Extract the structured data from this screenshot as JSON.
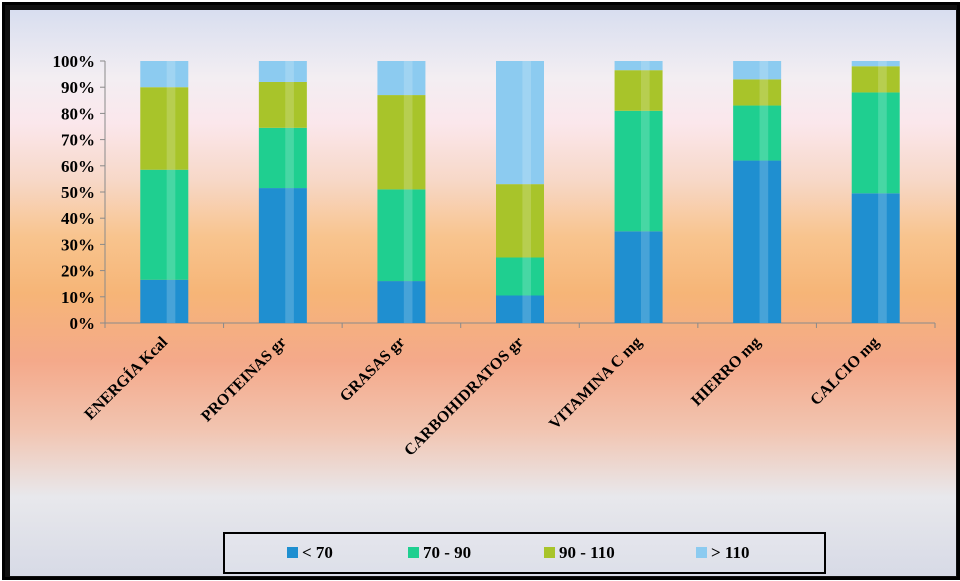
{
  "chart_data": {
    "type": "bar",
    "stacked": true,
    "percent_stacked": true,
    "title": "",
    "xlabel": "",
    "ylabel": "",
    "ylim": [
      0,
      100
    ],
    "y_ticks": [
      "0%",
      "10%",
      "20%",
      "30%",
      "40%",
      "50%",
      "60%",
      "70%",
      "80%",
      "90%",
      "100%"
    ],
    "grid": false,
    "legend_position": "bottom",
    "categories": [
      "ENERGÍA Kcal",
      "PROTEINAS gr",
      "GRASAS gr",
      "CARBOHIDRATOS gr",
      "VITAMINA C mg",
      "HIERRO mg",
      "CALCIO mg"
    ],
    "series": [
      {
        "name": "< 70",
        "color": "#1f8fd0",
        "values": [
          16.5,
          51.5,
          16.0,
          10.5,
          35.0,
          62.0,
          49.5
        ]
      },
      {
        "name": "70 - 90",
        "color": "#1fcf90",
        "values": [
          42.0,
          23.0,
          35.0,
          14.5,
          46.0,
          21.0,
          38.5
        ]
      },
      {
        "name": "90 - 110",
        "color": "#a8c42a",
        "values": [
          31.5,
          17.5,
          36.0,
          28.0,
          15.5,
          10.0,
          10.0
        ]
      },
      {
        "name": "> 110",
        "color": "#8ccbf0",
        "values": [
          10.0,
          8.0,
          13.0,
          47.0,
          3.5,
          7.0,
          2.0
        ]
      }
    ]
  }
}
